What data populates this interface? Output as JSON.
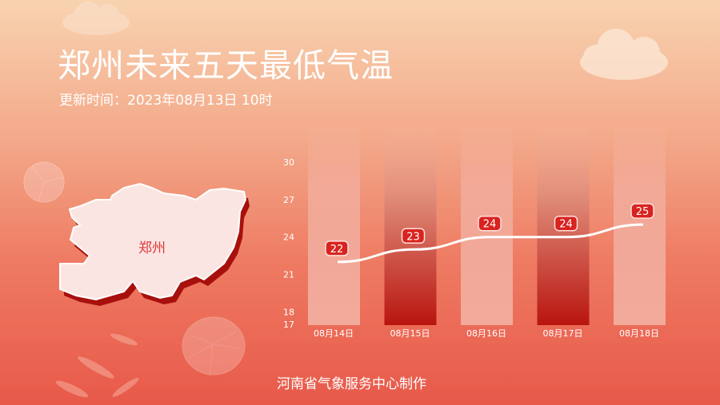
{
  "header": {
    "title": "郑州未来五天最低气温",
    "subtitle": "更新时间：2023年08月13日 10时"
  },
  "map": {
    "region_label": "郑州"
  },
  "footer": {
    "credit": "河南省气象服务中心制作"
  },
  "colors": {
    "label_badge": "#d9231f",
    "bar_light": "#f2aa9b",
    "bar_dark": "#b8150f",
    "line": "#ffffff"
  },
  "chart_data": {
    "type": "line",
    "categories": [
      "08月14日",
      "08月15日",
      "08月16日",
      "08月17日",
      "08月18日"
    ],
    "values": [
      22,
      23,
      24,
      24,
      25
    ],
    "data_labels": [
      "22",
      "23",
      "24",
      "24",
      "25"
    ],
    "yticks": [
      30,
      27,
      24,
      21,
      18,
      17
    ],
    "ylim": [
      17,
      30
    ],
    "grid": false,
    "background_bars": "alternating light/dark columns"
  }
}
